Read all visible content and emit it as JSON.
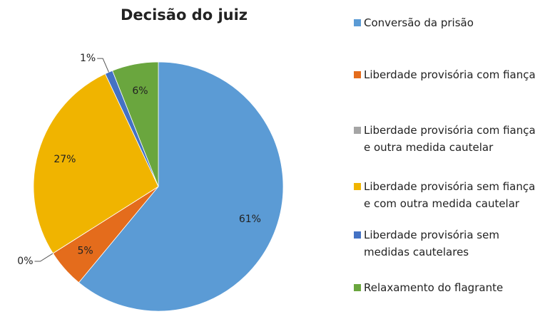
{
  "chart_data": {
    "type": "pie",
    "title": "Decisão do juiz",
    "categories": [
      "Conversão da prisão",
      "Liberdade provisória com fiança",
      "Liberdade provisória com fiança e outra medida cautelar",
      "Liberdade provisória sem fiança e com outra medida cautelar",
      "Liberdade provisória sem medidas cautelares",
      "Relaxamento do flagrante"
    ],
    "values": [
      61,
      5,
      0,
      27,
      1,
      6
    ],
    "value_labels": [
      "61%",
      "5%",
      "0%",
      "27%",
      "1%",
      "6%"
    ],
    "colors": [
      "#5b9bd5",
      "#e46c1c",
      "#a5a5a5",
      "#f0b400",
      "#4472c4",
      "#6aa63e"
    ],
    "legend": "right"
  }
}
